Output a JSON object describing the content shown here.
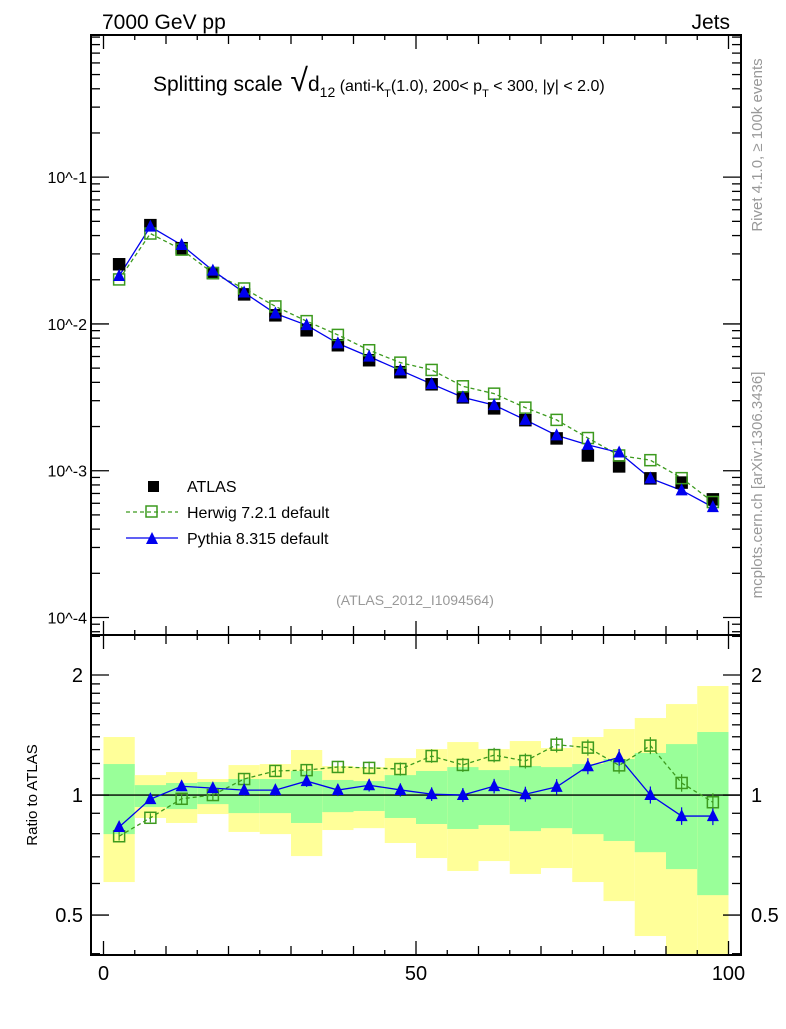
{
  "header": {
    "left": "7000 GeV pp",
    "right": "Jets"
  },
  "side_text": {
    "rivet": "Rivet 4.1.0, ≥ 100k events",
    "mcplots": "mcplots.cern.ch [arXiv:1306.3436]"
  },
  "title_parts": {
    "a": "Splitting scale",
    "sqrt": "√",
    "d": "d",
    "d_sub": "12",
    "b": " (anti-k",
    "b_sub": "T",
    "c": "(1.0), 200< p",
    "c_sub": "T",
    "d2": " < 300, |y| < 2.0)"
  },
  "analysis_id": "(ATLAS_2012_I1094564)",
  "colors": {
    "atlas": "#000000",
    "herwig": "#3c9a1e",
    "pythia": "#0000ee",
    "band_stat": "#99ff99",
    "band_total": "#ffff99"
  },
  "chart_data": [
    {
      "type": "scatter",
      "panel": "main",
      "yscale": "log",
      "xlim": [
        -2,
        102
      ],
      "ylim": [
        7.6e-05,
        0.93
      ],
      "ytick_labels": [
        "10^-1",
        "10^-2",
        "10^-3",
        "10^-4"
      ],
      "yticks": [
        0.1,
        0.01,
        0.001,
        0.0001
      ],
      "legend": {
        "placement": "bottom-left",
        "entries": [
          "ATLAS",
          "Herwig 7.2.1 default",
          "Pythia 8.315 default"
        ]
      },
      "x": [
        2.5,
        7.5,
        12.5,
        17.5,
        22.5,
        27.5,
        32.5,
        37.5,
        42.5,
        47.5,
        52.5,
        57.5,
        62.5,
        67.5,
        72.5,
        77.5,
        82.5,
        87.5,
        92.5,
        97.5
      ],
      "series": [
        {
          "name": "ATLAS",
          "values": [
            0.0255,
            0.0471,
            0.0328,
            0.0222,
            0.0159,
            0.01145,
            0.00905,
            0.00716,
            0.00566,
            0.00469,
            0.00388,
            0.00316,
            0.00266,
            0.00221,
            0.00166,
            0.00127,
            0.00107,
            0.000887,
            0.00083,
            0.000638
          ]
        },
        {
          "name": "Herwig 7.2.1 default",
          "values": [
            0.0201,
            0.0413,
            0.0321,
            0.0222,
            0.01744,
            0.01316,
            0.01045,
            0.00842,
            0.00662,
            0.00545,
            0.00486,
            0.00376,
            0.00335,
            0.00269,
            0.00222,
            0.00167,
            0.00127,
            0.00118,
            0.00089,
            0.000612
          ]
        },
        {
          "name": "Pythia 8.315 default",
          "values": [
            0.0212,
            0.046,
            0.0345,
            0.0231,
            0.01636,
            0.01178,
            0.00981,
            0.00737,
            0.00599,
            0.00483,
            0.0039,
            0.00316,
            0.0028,
            0.00222,
            0.00174,
            0.0015,
            0.00133,
            0.000887,
            0.000735,
            0.000565
          ]
        }
      ]
    },
    {
      "type": "scatter",
      "panel": "ratio",
      "yscale": "log",
      "ylabel": "Ratio to ATLAS",
      "xlim": [
        -2,
        102
      ],
      "ylim": [
        0.397,
        2.52
      ],
      "yticks": [
        0.5,
        1,
        2
      ],
      "ytick_labels": [
        "0.5",
        "1",
        "2"
      ],
      "xticks": [
        0,
        50,
        100
      ],
      "xtick_labels": [
        "0",
        "50",
        "100"
      ],
      "bin_edges": [
        0,
        5,
        10,
        15,
        20,
        25,
        30,
        35,
        40,
        45,
        50,
        55,
        60,
        65,
        70,
        75,
        80,
        85,
        90,
        95,
        100
      ],
      "band_stat": {
        "lo": [
          0.798,
          0.933,
          0.922,
          0.949,
          0.901,
          0.901,
          0.851,
          0.906,
          0.912,
          0.876,
          0.846,
          0.822,
          0.841,
          0.812,
          0.826,
          0.798,
          0.767,
          0.719,
          0.652,
          0.561
        ],
        "hi": [
          1.196,
          1.059,
          1.072,
          1.078,
          1.097,
          1.097,
          1.149,
          1.091,
          1.084,
          1.122,
          1.149,
          1.175,
          1.155,
          1.182,
          1.175,
          1.196,
          1.231,
          1.275,
          1.342,
          1.439
        ]
      },
      "band_total": {
        "lo": [
          0.605,
          0.876,
          0.851,
          0.896,
          0.808,
          0.798,
          0.703,
          0.817,
          0.826,
          0.758,
          0.695,
          0.645,
          0.683,
          0.634,
          0.656,
          0.605,
          0.542,
          0.443,
          0.35,
          0.3
        ],
        "hi": [
          1.398,
          1.122,
          1.142,
          1.097,
          1.189,
          1.196,
          1.297,
          1.182,
          1.175,
          1.238,
          1.304,
          1.358,
          1.304,
          1.366,
          1.312,
          1.398,
          1.464,
          1.56,
          1.691,
          1.877
        ]
      }
    }
  ]
}
